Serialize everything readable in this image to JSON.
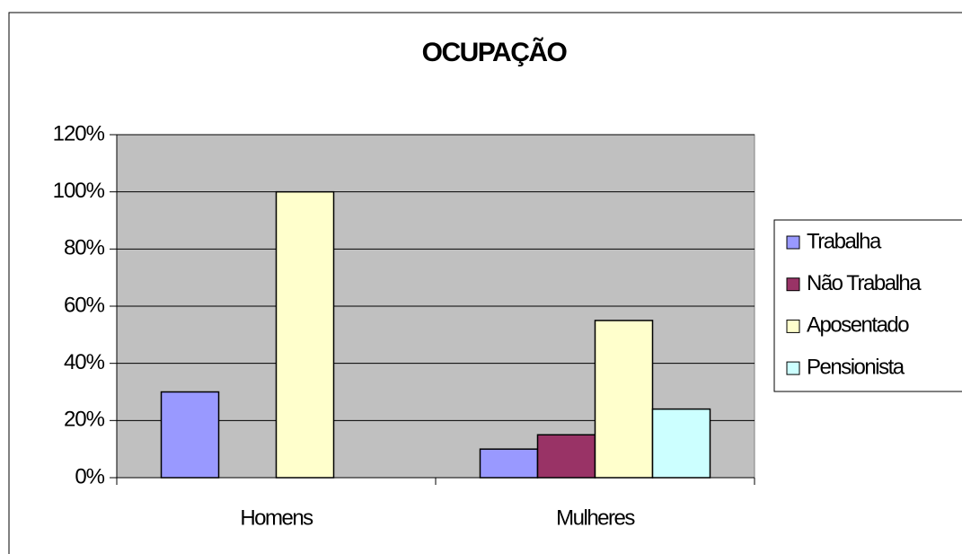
{
  "chart_data": {
    "type": "bar",
    "title": "OCUPAÇÃO",
    "categories": [
      "Homens",
      "Mulheres"
    ],
    "series": [
      {
        "name": "Trabalha",
        "color": "#9999ff",
        "values": [
          30,
          10
        ]
      },
      {
        "name": "Não Trabalha",
        "color": "#993366",
        "values": [
          null,
          15
        ]
      },
      {
        "name": "Aposentado",
        "color": "#ffffcc",
        "values": [
          100,
          55
        ]
      },
      {
        "name": "Pensionista",
        "color": "#ccffff",
        "values": [
          null,
          24
        ]
      }
    ],
    "ylim": [
      0,
      120
    ],
    "yticks": [
      {
        "value": 0,
        "label": "0%"
      },
      {
        "value": 20,
        "label": "20%"
      },
      {
        "value": 40,
        "label": "40%"
      },
      {
        "value": 60,
        "label": "60%"
      },
      {
        "value": 80,
        "label": "80%"
      },
      {
        "value": 100,
        "label": "100%"
      },
      {
        "value": 120,
        "label": "120%"
      }
    ],
    "grid": true,
    "plot_background": "#c0c0c0",
    "legend": "right"
  }
}
